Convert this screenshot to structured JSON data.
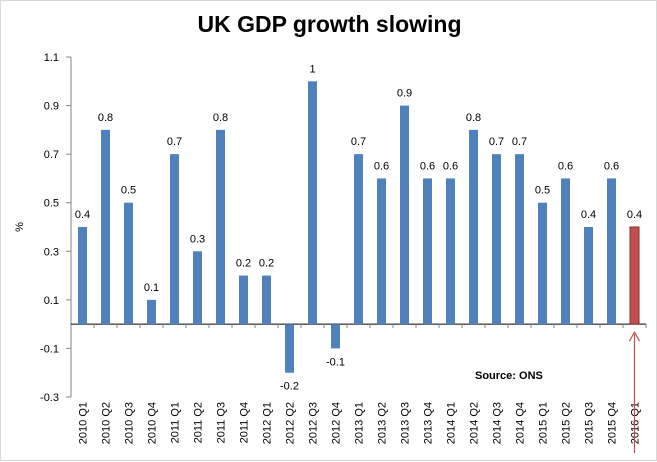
{
  "chart_data": {
    "type": "bar",
    "title": "UK GDP growth slowing",
    "ylabel": "%",
    "xlabel": "",
    "ylim": [
      -0.3,
      1.1
    ],
    "yticks": [
      1.1,
      0.9,
      0.7,
      0.5,
      0.3,
      0.1,
      -0.1,
      -0.3
    ],
    "grid": false,
    "categories": [
      "2010 Q1",
      "2010 Q2",
      "2010 Q3",
      "2010 Q4",
      "2011 Q1",
      "2011 Q2",
      "2011 Q3",
      "2011 Q4",
      "2012 Q1",
      "2012 Q2",
      "2012 Q3",
      "2012 Q4",
      "2013 Q1",
      "2013 Q2",
      "2013 Q3",
      "2013 Q4",
      "2014 Q1",
      "2014 Q2",
      "2014 Q3",
      "2014 Q4",
      "2015 Q1",
      "2015 Q2",
      "2015 Q3",
      "2015 Q4",
      "2016 Q1"
    ],
    "values": [
      0.4,
      0.8,
      0.5,
      0.1,
      0.7,
      0.3,
      0.8,
      0.2,
      0.2,
      -0.2,
      1,
      -0.1,
      0.7,
      0.6,
      0.9,
      0.6,
      0.6,
      0.8,
      0.7,
      0.7,
      0.5,
      0.6,
      0.4,
      0.6,
      0.4
    ],
    "bar_color": "#4f81bd",
    "highlight": {
      "index": 24,
      "color": "#c0504d",
      "border": "#8b2e2b"
    },
    "arrow_color": "#c0504d",
    "annotation": "Source: ONS"
  }
}
